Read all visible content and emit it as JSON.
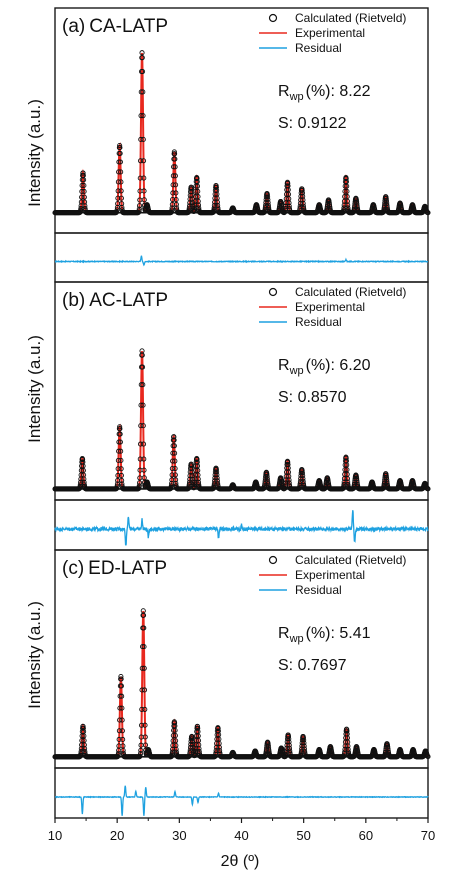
{
  "figure": {
    "xlabel": "2θ (º)",
    "ylabel": "Intensity (a.u.)",
    "x_ticks": [
      10,
      20,
      30,
      40,
      50,
      60,
      70
    ],
    "colors": {
      "calculated": "#111111",
      "experimental": "#e8281e",
      "residual": "#1ea1e0",
      "baseline": "#111111"
    },
    "legend": {
      "calculated": "Calculated (Rietveld)",
      "experimental": "Experimental",
      "residual": "Residual"
    }
  },
  "chart_data": [
    {
      "type": "line",
      "panel_label": "(a)",
      "sample": "CA-LATP",
      "rwp_label": "R",
      "rwp_sub": "wp",
      "rwp_value": "(%): 8.22",
      "s_text": "S: 0.9122",
      "xlim": [
        10,
        70
      ],
      "ylim": [
        0,
        1
      ],
      "peaks": [
        [
          14.5,
          0.25
        ],
        [
          20.4,
          0.42
        ],
        [
          24.0,
          1.0
        ],
        [
          24.8,
          0.05
        ],
        [
          29.2,
          0.38
        ],
        [
          31.9,
          0.16
        ],
        [
          32.8,
          0.22
        ],
        [
          35.9,
          0.17
        ],
        [
          38.6,
          0.03
        ],
        [
          42.4,
          0.05
        ],
        [
          44.1,
          0.12
        ],
        [
          46.3,
          0.07
        ],
        [
          47.4,
          0.19
        ],
        [
          49.7,
          0.15
        ],
        [
          52.5,
          0.05
        ],
        [
          54.0,
          0.08
        ],
        [
          56.8,
          0.22
        ],
        [
          58.4,
          0.09
        ],
        [
          61.2,
          0.05
        ],
        [
          63.2,
          0.1
        ],
        [
          65.5,
          0.06
        ],
        [
          67.5,
          0.05
        ],
        [
          69.5,
          0.04
        ]
      ],
      "residual_spikes": [
        [
          23.9,
          0.3
        ],
        [
          24.3,
          -0.2
        ],
        [
          56.8,
          0.1
        ]
      ],
      "residual_noise": 0.04
    },
    {
      "type": "line",
      "panel_label": "(b)",
      "sample": "AC-LATP",
      "rwp_label": "R",
      "rwp_sub": "wp",
      "rwp_value": "(%): 6.20",
      "s_text": "S: 0.8570",
      "xlim": [
        10,
        70
      ],
      "ylim": [
        0,
        1
      ],
      "peaks": [
        [
          14.4,
          0.22
        ],
        [
          20.4,
          0.45
        ],
        [
          24.0,
          1.0
        ],
        [
          24.8,
          0.05
        ],
        [
          29.1,
          0.38
        ],
        [
          31.9,
          0.18
        ],
        [
          32.8,
          0.22
        ],
        [
          35.9,
          0.15
        ],
        [
          38.6,
          0.03
        ],
        [
          42.3,
          0.05
        ],
        [
          44.0,
          0.12
        ],
        [
          46.3,
          0.08
        ],
        [
          47.4,
          0.2
        ],
        [
          49.7,
          0.14
        ],
        [
          52.5,
          0.06
        ],
        [
          53.8,
          0.08
        ],
        [
          56.8,
          0.23
        ],
        [
          58.4,
          0.1
        ],
        [
          61.0,
          0.05
        ],
        [
          63.2,
          0.11
        ],
        [
          65.5,
          0.06
        ],
        [
          67.5,
          0.06
        ],
        [
          69.5,
          0.04
        ]
      ],
      "residual_spikes": [
        [
          21.4,
          -0.9
        ],
        [
          21.8,
          0.7
        ],
        [
          24.0,
          0.5
        ],
        [
          25.0,
          -0.4
        ],
        [
          36.3,
          -0.5
        ],
        [
          40.0,
          0.2
        ],
        [
          57.9,
          1.0
        ],
        [
          58.2,
          -0.7
        ]
      ],
      "residual_noise": 0.18
    },
    {
      "type": "line",
      "panel_label": "(c)",
      "sample": "ED-LATP",
      "rwp_label": "R",
      "rwp_sub": "wp",
      "rwp_value": "(%): 5.41",
      "s_text": "S: 0.7697",
      "xlim": [
        10,
        70
      ],
      "ylim": [
        0,
        1
      ],
      "peaks": [
        [
          14.5,
          0.21
        ],
        [
          20.6,
          0.55
        ],
        [
          24.2,
          1.0
        ],
        [
          25.0,
          0.05
        ],
        [
          29.2,
          0.24
        ],
        [
          32.0,
          0.14
        ],
        [
          32.9,
          0.21
        ],
        [
          36.2,
          0.2
        ],
        [
          38.6,
          0.03
        ],
        [
          42.2,
          0.04
        ],
        [
          44.2,
          0.1
        ],
        [
          46.4,
          0.06
        ],
        [
          47.5,
          0.15
        ],
        [
          49.9,
          0.14
        ],
        [
          52.5,
          0.05
        ],
        [
          54.3,
          0.07
        ],
        [
          56.9,
          0.19
        ],
        [
          58.5,
          0.07
        ],
        [
          61.3,
          0.05
        ],
        [
          63.4,
          0.09
        ],
        [
          65.5,
          0.05
        ],
        [
          67.6,
          0.05
        ],
        [
          69.6,
          0.04
        ]
      ],
      "residual_spikes": [
        [
          14.4,
          -0.9
        ],
        [
          20.8,
          -1.0
        ],
        [
          21.3,
          0.6
        ],
        [
          23.0,
          0.3
        ],
        [
          24.3,
          -1.0
        ],
        [
          24.6,
          0.5
        ],
        [
          29.3,
          0.3
        ],
        [
          32.1,
          -0.4
        ],
        [
          33.0,
          -0.3
        ],
        [
          36.3,
          0.2
        ]
      ],
      "residual_noise": 0.03
    }
  ]
}
